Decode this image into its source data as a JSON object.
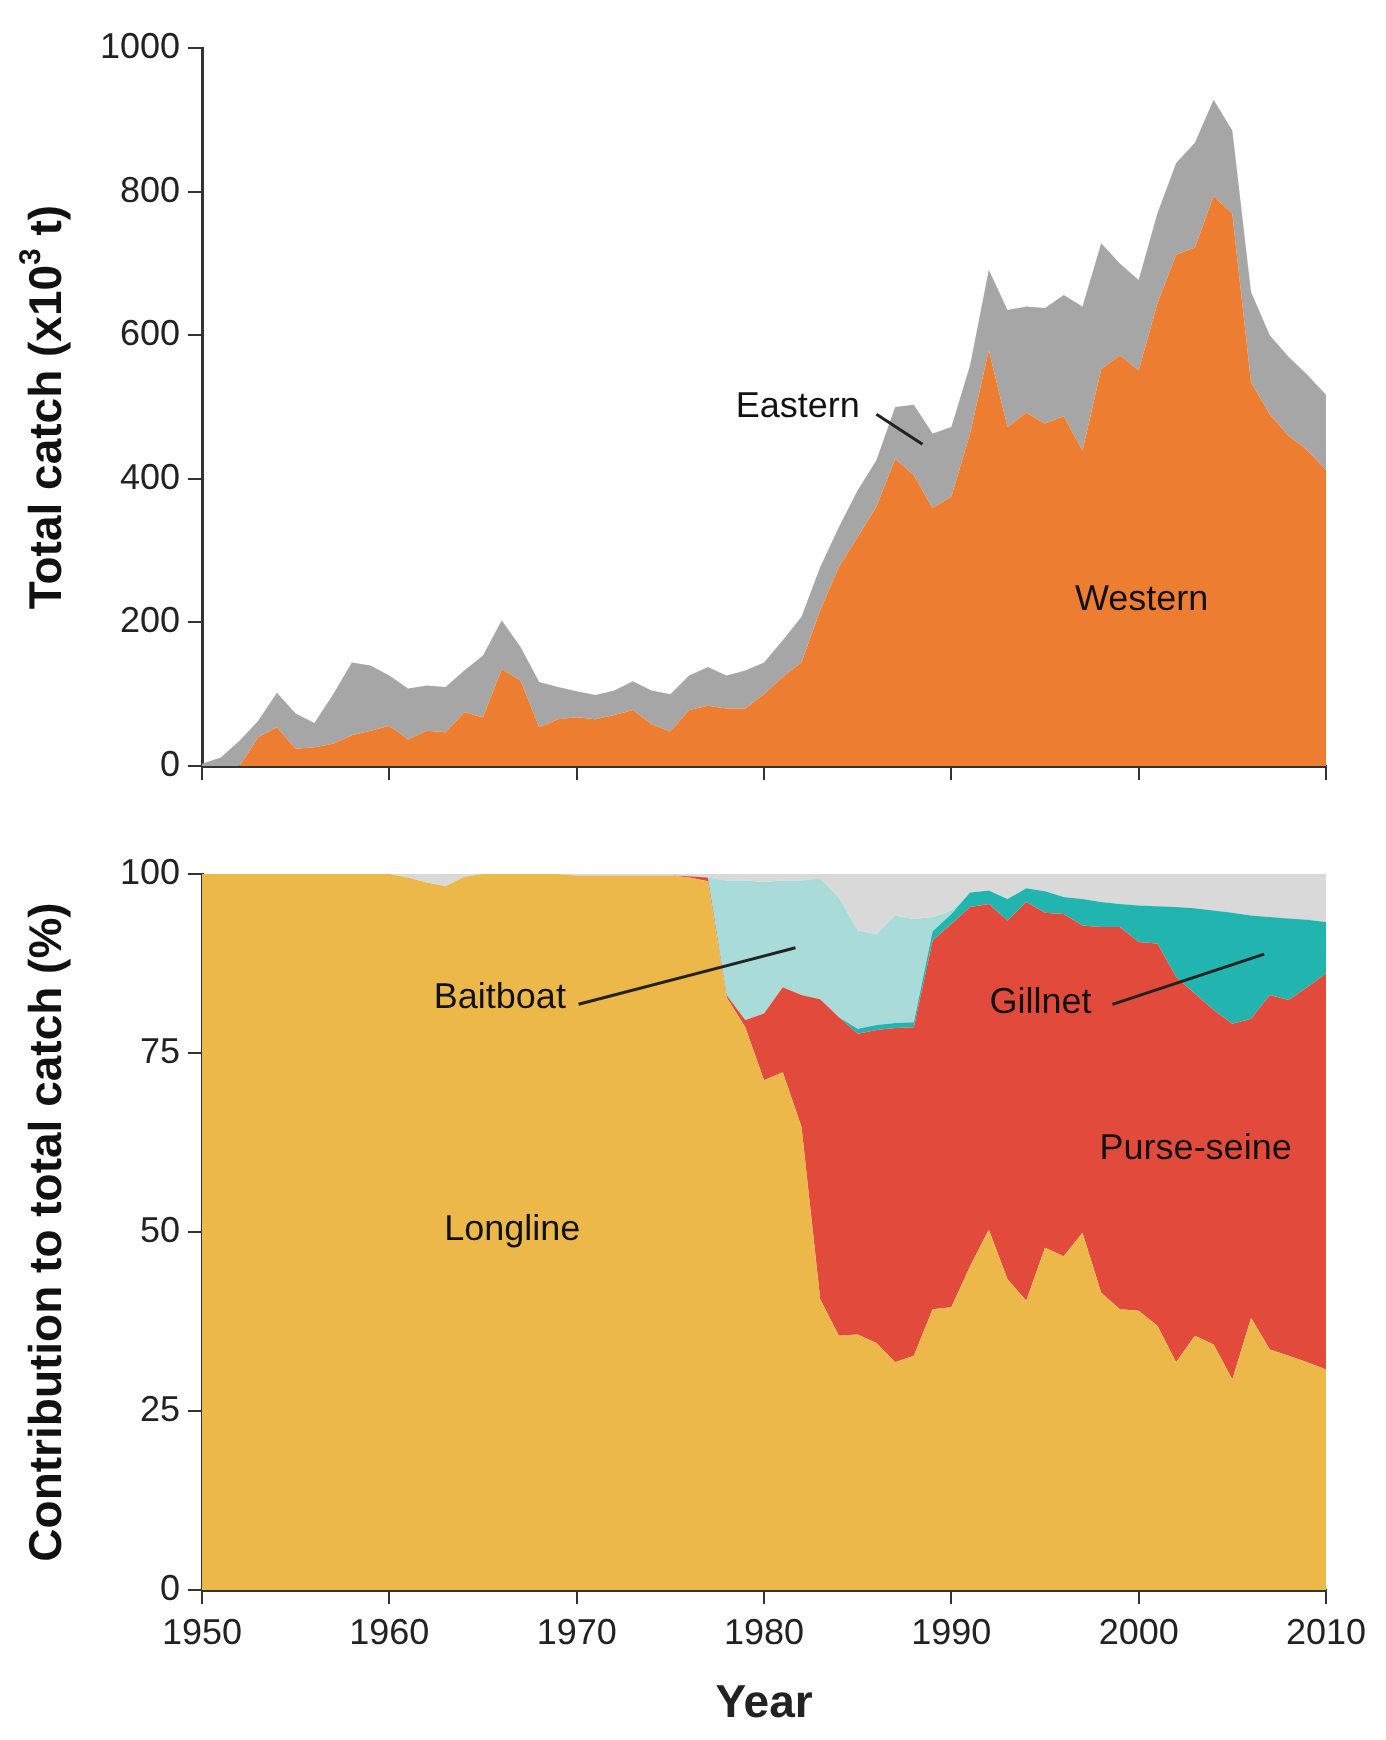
{
  "chart_data": [
    {
      "type": "area",
      "stacked": true,
      "ylabel": "Total catch (x10$^{3}$ t)",
      "tick_labels": "y",
      "xlim": [
        1950,
        2010
      ],
      "xticks": [
        1950,
        1960,
        1970,
        1980,
        1990,
        2000,
        2010
      ],
      "ylim": [
        0,
        1000
      ],
      "yticks": [
        0,
        200,
        400,
        600,
        800,
        1000
      ],
      "x": [
        1950,
        1951,
        1952,
        1953,
        1954,
        1955,
        1956,
        1957,
        1958,
        1959,
        1960,
        1961,
        1962,
        1963,
        1964,
        1965,
        1966,
        1967,
        1968,
        1969,
        1970,
        1971,
        1972,
        1973,
        1974,
        1975,
        1976,
        1977,
        1978,
        1979,
        1980,
        1981,
        1982,
        1983,
        1984,
        1985,
        1986,
        1987,
        1988,
        1989,
        1990,
        1991,
        1992,
        1993,
        1994,
        1995,
        1996,
        1997,
        1998,
        1999,
        2000,
        2001,
        2002,
        2003,
        2004,
        2005,
        2006,
        2007,
        2008,
        2009,
        2010
      ],
      "series": [
        {
          "name": "Western",
          "color": "#ed7d31",
          "values": [
            0,
            0,
            0,
            40,
            54,
            24,
            26,
            31,
            43,
            49,
            56,
            37,
            49,
            47,
            75,
            68,
            135,
            119,
            54,
            65,
            68,
            65,
            71,
            78,
            58,
            48,
            78,
            84,
            80,
            80,
            100,
            124,
            144,
            217,
            277,
            319,
            361,
            428,
            405,
            359,
            375,
            463,
            579,
            472,
            492,
            477,
            487,
            439,
            553,
            572,
            551,
            644,
            712,
            722,
            794,
            769,
            534,
            490,
            460,
            440,
            412
          ]
        },
        {
          "name": "Eastern",
          "color": "#a6a6a6",
          "values": [
            3,
            12,
            35,
            23,
            48,
            49,
            34,
            69,
            101,
            91,
            70,
            71,
            63,
            63,
            58,
            86,
            68,
            47,
            63,
            45,
            36,
            34,
            34,
            40,
            47,
            52,
            48,
            54,
            46,
            53,
            44,
            51,
            64,
            60,
            56,
            65,
            65,
            72,
            98,
            104,
            97,
            95,
            112,
            163,
            148,
            161,
            169,
            201,
            175,
            128,
            126,
            126,
            128,
            146,
            134,
            116,
            126,
            110,
            110,
            105,
            105
          ]
        }
      ]
    },
    {
      "type": "area",
      "stacked": true,
      "xlabel": "Year",
      "ylabel": "Contribution to total catch (%)",
      "xlim": [
        1950,
        2010
      ],
      "xticks": [
        1950,
        1960,
        1970,
        1980,
        1990,
        2000,
        2010
      ],
      "ylim": [
        0,
        100
      ],
      "yticks": [
        0,
        25,
        50,
        75,
        100
      ],
      "x": [
        1950,
        1951,
        1952,
        1953,
        1954,
        1955,
        1956,
        1957,
        1958,
        1959,
        1960,
        1961,
        1962,
        1963,
        1964,
        1965,
        1966,
        1967,
        1968,
        1969,
        1970,
        1971,
        1972,
        1973,
        1974,
        1975,
        1976,
        1977,
        1978,
        1979,
        1980,
        1981,
        1982,
        1983,
        1984,
        1985,
        1986,
        1987,
        1988,
        1989,
        1990,
        1991,
        1992,
        1993,
        1994,
        1995,
        1996,
        1997,
        1998,
        1999,
        2000,
        2001,
        2002,
        2003,
        2004,
        2005,
        2006,
        2007,
        2008,
        2009,
        2010
      ],
      "series": [
        {
          "name": "Longline",
          "color": "#ecb84a",
          "values": [
            100,
            100,
            100,
            100,
            100,
            100,
            100,
            100,
            100,
            100,
            100,
            99.5,
            98.8,
            98.3,
            99.6,
            100,
            100,
            100,
            100,
            100,
            99.8,
            99.8,
            99.8,
            99.8,
            99.8,
            99.8,
            99.5,
            99.0,
            82.8,
            78.6,
            71.2,
            72.3,
            64.7,
            40.6,
            35.5,
            35.7,
            34.5,
            31.8,
            32.7,
            39.2,
            39.5,
            45.2,
            50.3,
            43.4,
            40.4,
            47.8,
            46.6,
            49.9,
            41.5,
            39.2,
            39.0,
            36.9,
            31.8,
            35.5,
            34.3,
            29.4,
            38.0,
            33.6,
            32.7,
            31.8,
            30.8
          ]
        },
        {
          "name": "Purse-seine",
          "color": "#e24b3b",
          "values": [
            0,
            0,
            0,
            0,
            0,
            0,
            0,
            0,
            0,
            0,
            0,
            0,
            0,
            0,
            0,
            0,
            0,
            0,
            0,
            0,
            0,
            0,
            0,
            0,
            0,
            0,
            0.2,
            0.5,
            0.3,
            1.0,
            9.3,
            11.9,
            18.4,
            41.9,
            44.5,
            42.0,
            43.7,
            46.7,
            45.9,
            51.5,
            53.5,
            50.2,
            45.5,
            50.1,
            55.7,
            46.8,
            47.8,
            42.9,
            51.1,
            53.4,
            51.5,
            53.4,
            53.8,
            47.8,
            46.7,
            49.7,
            41.8,
            49.5,
            49.7,
            52.4,
            55.3
          ]
        },
        {
          "name": "Gillnet",
          "color": "#22b5b0",
          "values": [
            0,
            0,
            0,
            0,
            0,
            0,
            0,
            0,
            0,
            0,
            0,
            0,
            0,
            0,
            0,
            0,
            0,
            0,
            0,
            0,
            0,
            0,
            0,
            0,
            0,
            0,
            0,
            0,
            0,
            0,
            0,
            0,
            0,
            0,
            0,
            0.7,
            0.7,
            0.7,
            0.7,
            1.3,
            1.4,
            2.0,
            1.9,
            3.0,
            1.9,
            3.0,
            2.4,
            3.7,
            3.5,
            3.2,
            5.1,
            5.2,
            9.8,
            11.9,
            13.9,
            15.5,
            14.4,
            10.9,
            11.4,
            9.4,
            7.2
          ]
        },
        {
          "name": "Baitboat",
          "color": "#a9dcd9",
          "values": [
            0,
            0,
            0,
            0,
            0,
            0,
            0,
            0,
            0,
            0,
            0,
            0,
            0,
            0,
            0,
            0,
            0,
            0,
            0,
            0,
            0,
            0,
            0,
            0,
            0,
            0,
            0,
            0,
            16.0,
            19.5,
            18.4,
            14.9,
            16.0,
            16.9,
            16.7,
            13.7,
            12.7,
            15.0,
            14.4,
            2.0,
            0.5,
            0,
            0,
            0,
            0,
            0,
            0,
            0,
            0,
            0,
            0,
            0,
            0,
            0,
            0,
            0,
            0,
            0,
            0,
            0,
            0
          ]
        },
        {
          "color": "#d9d9d9",
          "values": [
            0,
            0,
            0,
            0,
            0,
            0,
            0,
            0,
            0,
            0,
            0,
            0.5,
            1.2,
            1.7,
            0.4,
            0,
            0,
            0,
            0,
            0,
            0.2,
            0.2,
            0.2,
            0.2,
            0.2,
            0.2,
            0.3,
            0.5,
            0.9,
            0.9,
            1.1,
            0.9,
            0.9,
            0.6,
            3.3,
            7.9,
            8.4,
            5.8,
            6.3,
            6.0,
            5.1,
            2.6,
            2.3,
            3.5,
            2.0,
            2.4,
            3.2,
            3.5,
            3.9,
            4.2,
            4.4,
            4.5,
            4.6,
            4.8,
            5.1,
            5.4,
            5.8,
            6.0,
            6.2,
            6.4,
            6.7
          ]
        }
      ]
    }
  ]
}
